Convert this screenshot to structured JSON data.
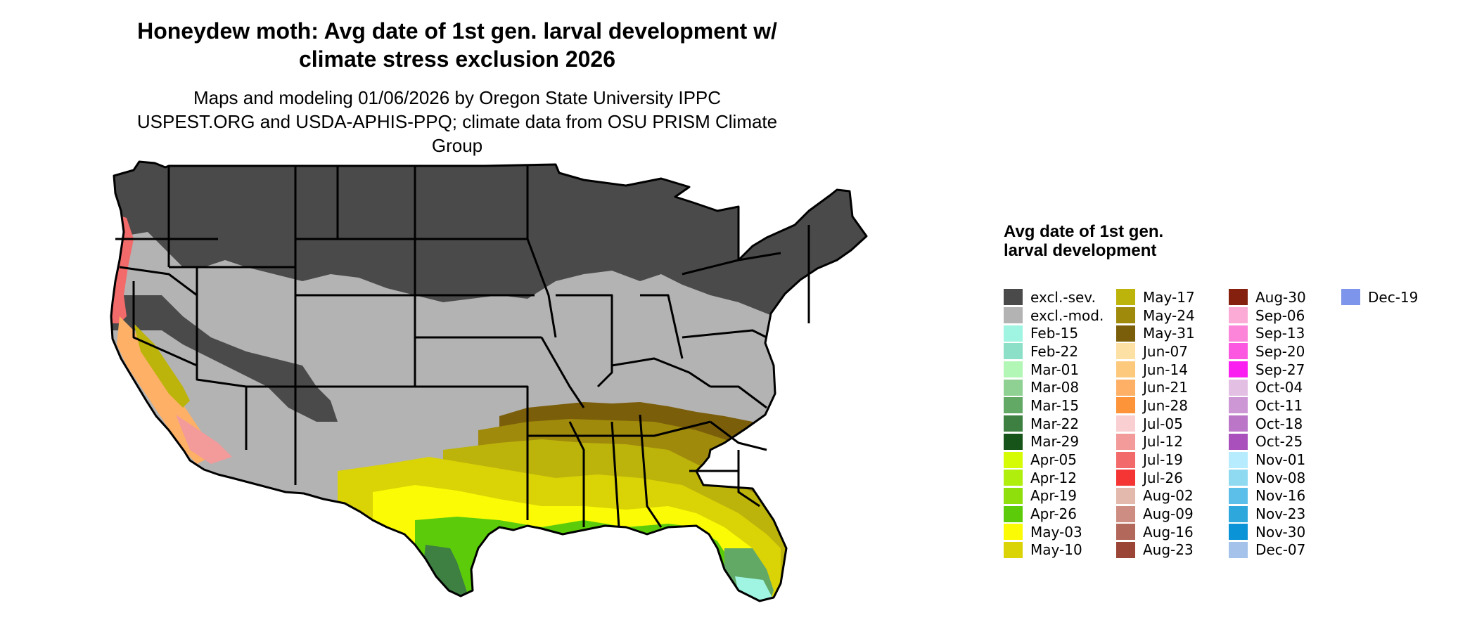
{
  "title": "Honeydew moth: Avg date of 1st gen. larval development w/ climate stress exclusion 2026",
  "subtitle": "Maps and modeling 01/06/2026 by Oregon State University IPPC USPEST.ORG and USDA-APHIS-PPQ; climate data from OSU PRISM Climate Group",
  "legend": {
    "title": "Avg date of 1st gen. larval development",
    "columns": [
      [
        {
          "label": "excl.-sev.",
          "color": "#4a4a4a"
        },
        {
          "label": "excl.-mod.",
          "color": "#b3b3b3"
        },
        {
          "label": "Feb-15",
          "color": "#9ff5e1"
        },
        {
          "label": "Feb-22",
          "color": "#8de0c8"
        },
        {
          "label": "Mar-01",
          "color": "#b2f7b6"
        },
        {
          "label": "Mar-08",
          "color": "#8ed192"
        },
        {
          "label": "Mar-15",
          "color": "#62a966"
        },
        {
          "label": "Mar-22",
          "color": "#3e7f42"
        },
        {
          "label": "Mar-29",
          "color": "#175419"
        },
        {
          "label": "Apr-05",
          "color": "#d6fc05"
        },
        {
          "label": "Apr-12",
          "color": "#b0ef0d"
        },
        {
          "label": "Apr-19",
          "color": "#8fdf0c"
        },
        {
          "label": "Apr-26",
          "color": "#5ccc0a"
        },
        {
          "label": "May-03",
          "color": "#fbfb05"
        },
        {
          "label": "May-10",
          "color": "#dad305"
        }
      ],
      [
        {
          "label": "May-17",
          "color": "#bcb40a"
        },
        {
          "label": "May-24",
          "color": "#a08a0b"
        },
        {
          "label": "May-31",
          "color": "#7b5e0a"
        },
        {
          "label": "Jun-07",
          "color": "#fde0a3"
        },
        {
          "label": "Jun-14",
          "color": "#fdc97d"
        },
        {
          "label": "Jun-21",
          "color": "#fdb066"
        },
        {
          "label": "Jun-28",
          "color": "#fd943a"
        },
        {
          "label": "Jul-05",
          "color": "#f9cfd1"
        },
        {
          "label": "Jul-12",
          "color": "#f39a9b"
        },
        {
          "label": "Jul-19",
          "color": "#f36a6a"
        },
        {
          "label": "Jul-26",
          "color": "#f53434"
        },
        {
          "label": "Aug-02",
          "color": "#e4b9ad"
        },
        {
          "label": "Aug-09",
          "color": "#cd8d82"
        },
        {
          "label": "Aug-16",
          "color": "#b3685c"
        },
        {
          "label": "Aug-23",
          "color": "#9a4535"
        }
      ],
      [
        {
          "label": "Aug-30",
          "color": "#85200f"
        },
        {
          "label": "Sep-06",
          "color": "#fcaad6"
        },
        {
          "label": "Sep-13",
          "color": "#fc85d9"
        },
        {
          "label": "Sep-20",
          "color": "#fc57e0"
        },
        {
          "label": "Sep-27",
          "color": "#fb1ef0"
        },
        {
          "label": "Oct-04",
          "color": "#e3bfe4"
        },
        {
          "label": "Oct-11",
          "color": "#cd97d5"
        },
        {
          "label": "Oct-18",
          "color": "#bb76c8"
        },
        {
          "label": "Oct-25",
          "color": "#a950bd"
        },
        {
          "label": "Nov-01",
          "color": "#b6ecfd"
        },
        {
          "label": "Nov-08",
          "color": "#8fdaf1"
        },
        {
          "label": "Nov-16",
          "color": "#5cbfea"
        },
        {
          "label": "Nov-23",
          "color": "#2ea7dc"
        },
        {
          "label": "Nov-30",
          "color": "#0a93d6"
        },
        {
          "label": "Dec-07",
          "color": "#a4c2ea"
        }
      ],
      [
        {
          "label": "Dec-19",
          "color": "#7d95ea"
        }
      ]
    ]
  },
  "map": {
    "region": "Contiguous United States",
    "zone_colors": {
      "excluded_severe": "#4a4a4a",
      "excluded_moderate": "#b3b3b3",
      "southeast_may_late": "#a08a0b",
      "southeast_may_mid": "#dad305",
      "gulf_april": "#5ccc0a",
      "south_tip_march": "#3e7f42",
      "florida_feb": "#9ff5e1",
      "west_coast_summer": "#f36a6a",
      "central_valley": "#bcb40a",
      "desert_fringe": "#fdb066",
      "state_borders": "#000000"
    }
  }
}
